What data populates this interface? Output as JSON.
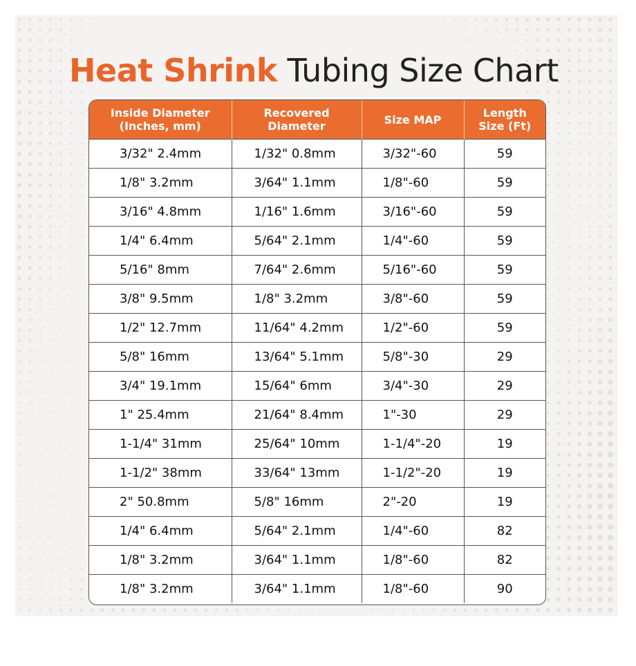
{
  "title": {
    "bold": "Heat Shrink",
    "regular": "Tubing Size Chart"
  },
  "colors": {
    "accent": "#ea6d2f",
    "header_text": "#ffffff",
    "background": "#f4f3f2"
  },
  "chart_data": {
    "type": "table",
    "columns": [
      {
        "line1": "Inside Diameter",
        "line2": "(Inches, mm)"
      },
      {
        "line1": "Recovered",
        "line2": "Diameter"
      },
      {
        "line1": "Size MAP",
        "line2": ""
      },
      {
        "line1": "Length",
        "line2": "Size (Ft)"
      }
    ],
    "rows": [
      [
        "3/32\" 2.4mm",
        "1/32\" 0.8mm",
        "3/32\"-60",
        "59"
      ],
      [
        "1/8\" 3.2mm",
        "3/64\" 1.1mm",
        "1/8\"-60",
        "59"
      ],
      [
        "3/16\" 4.8mm",
        "1/16\" 1.6mm",
        "3/16\"-60",
        "59"
      ],
      [
        "1/4\" 6.4mm",
        "5/64\" 2.1mm",
        "1/4\"-60",
        "59"
      ],
      [
        "5/16\" 8mm",
        "7/64\" 2.6mm",
        "5/16\"-60",
        "59"
      ],
      [
        "3/8\" 9.5mm",
        "1/8\" 3.2mm",
        "3/8\"-60",
        "59"
      ],
      [
        "1/2\" 12.7mm",
        "11/64\" 4.2mm",
        "1/2\"-60",
        "59"
      ],
      [
        "5/8\" 16mm",
        "13/64\" 5.1mm",
        "5/8\"-30",
        "29"
      ],
      [
        "3/4\" 19.1mm",
        "15/64\" 6mm",
        "3/4\"-30",
        "29"
      ],
      [
        "1\" 25.4mm",
        "21/64\" 8.4mm",
        "1\"-30",
        "29"
      ],
      [
        "1-1/4\" 31mm",
        "25/64\" 10mm",
        "1-1/4\"-20",
        "19"
      ],
      [
        "1-1/2\" 38mm",
        "33/64\" 13mm",
        "1-1/2\"-20",
        "19"
      ],
      [
        "2\" 50.8mm",
        "5/8\" 16mm",
        "2\"-20",
        "19"
      ],
      [
        "1/4\" 6.4mm",
        "5/64\" 2.1mm",
        "1/4\"-60",
        "82"
      ],
      [
        "1/8\" 3.2mm",
        "3/64\" 1.1mm",
        "1/8\"-60",
        "82"
      ],
      [
        "1/8\" 3.2mm",
        "3/64\" 1.1mm",
        "1/8\"-60",
        "90"
      ]
    ]
  }
}
